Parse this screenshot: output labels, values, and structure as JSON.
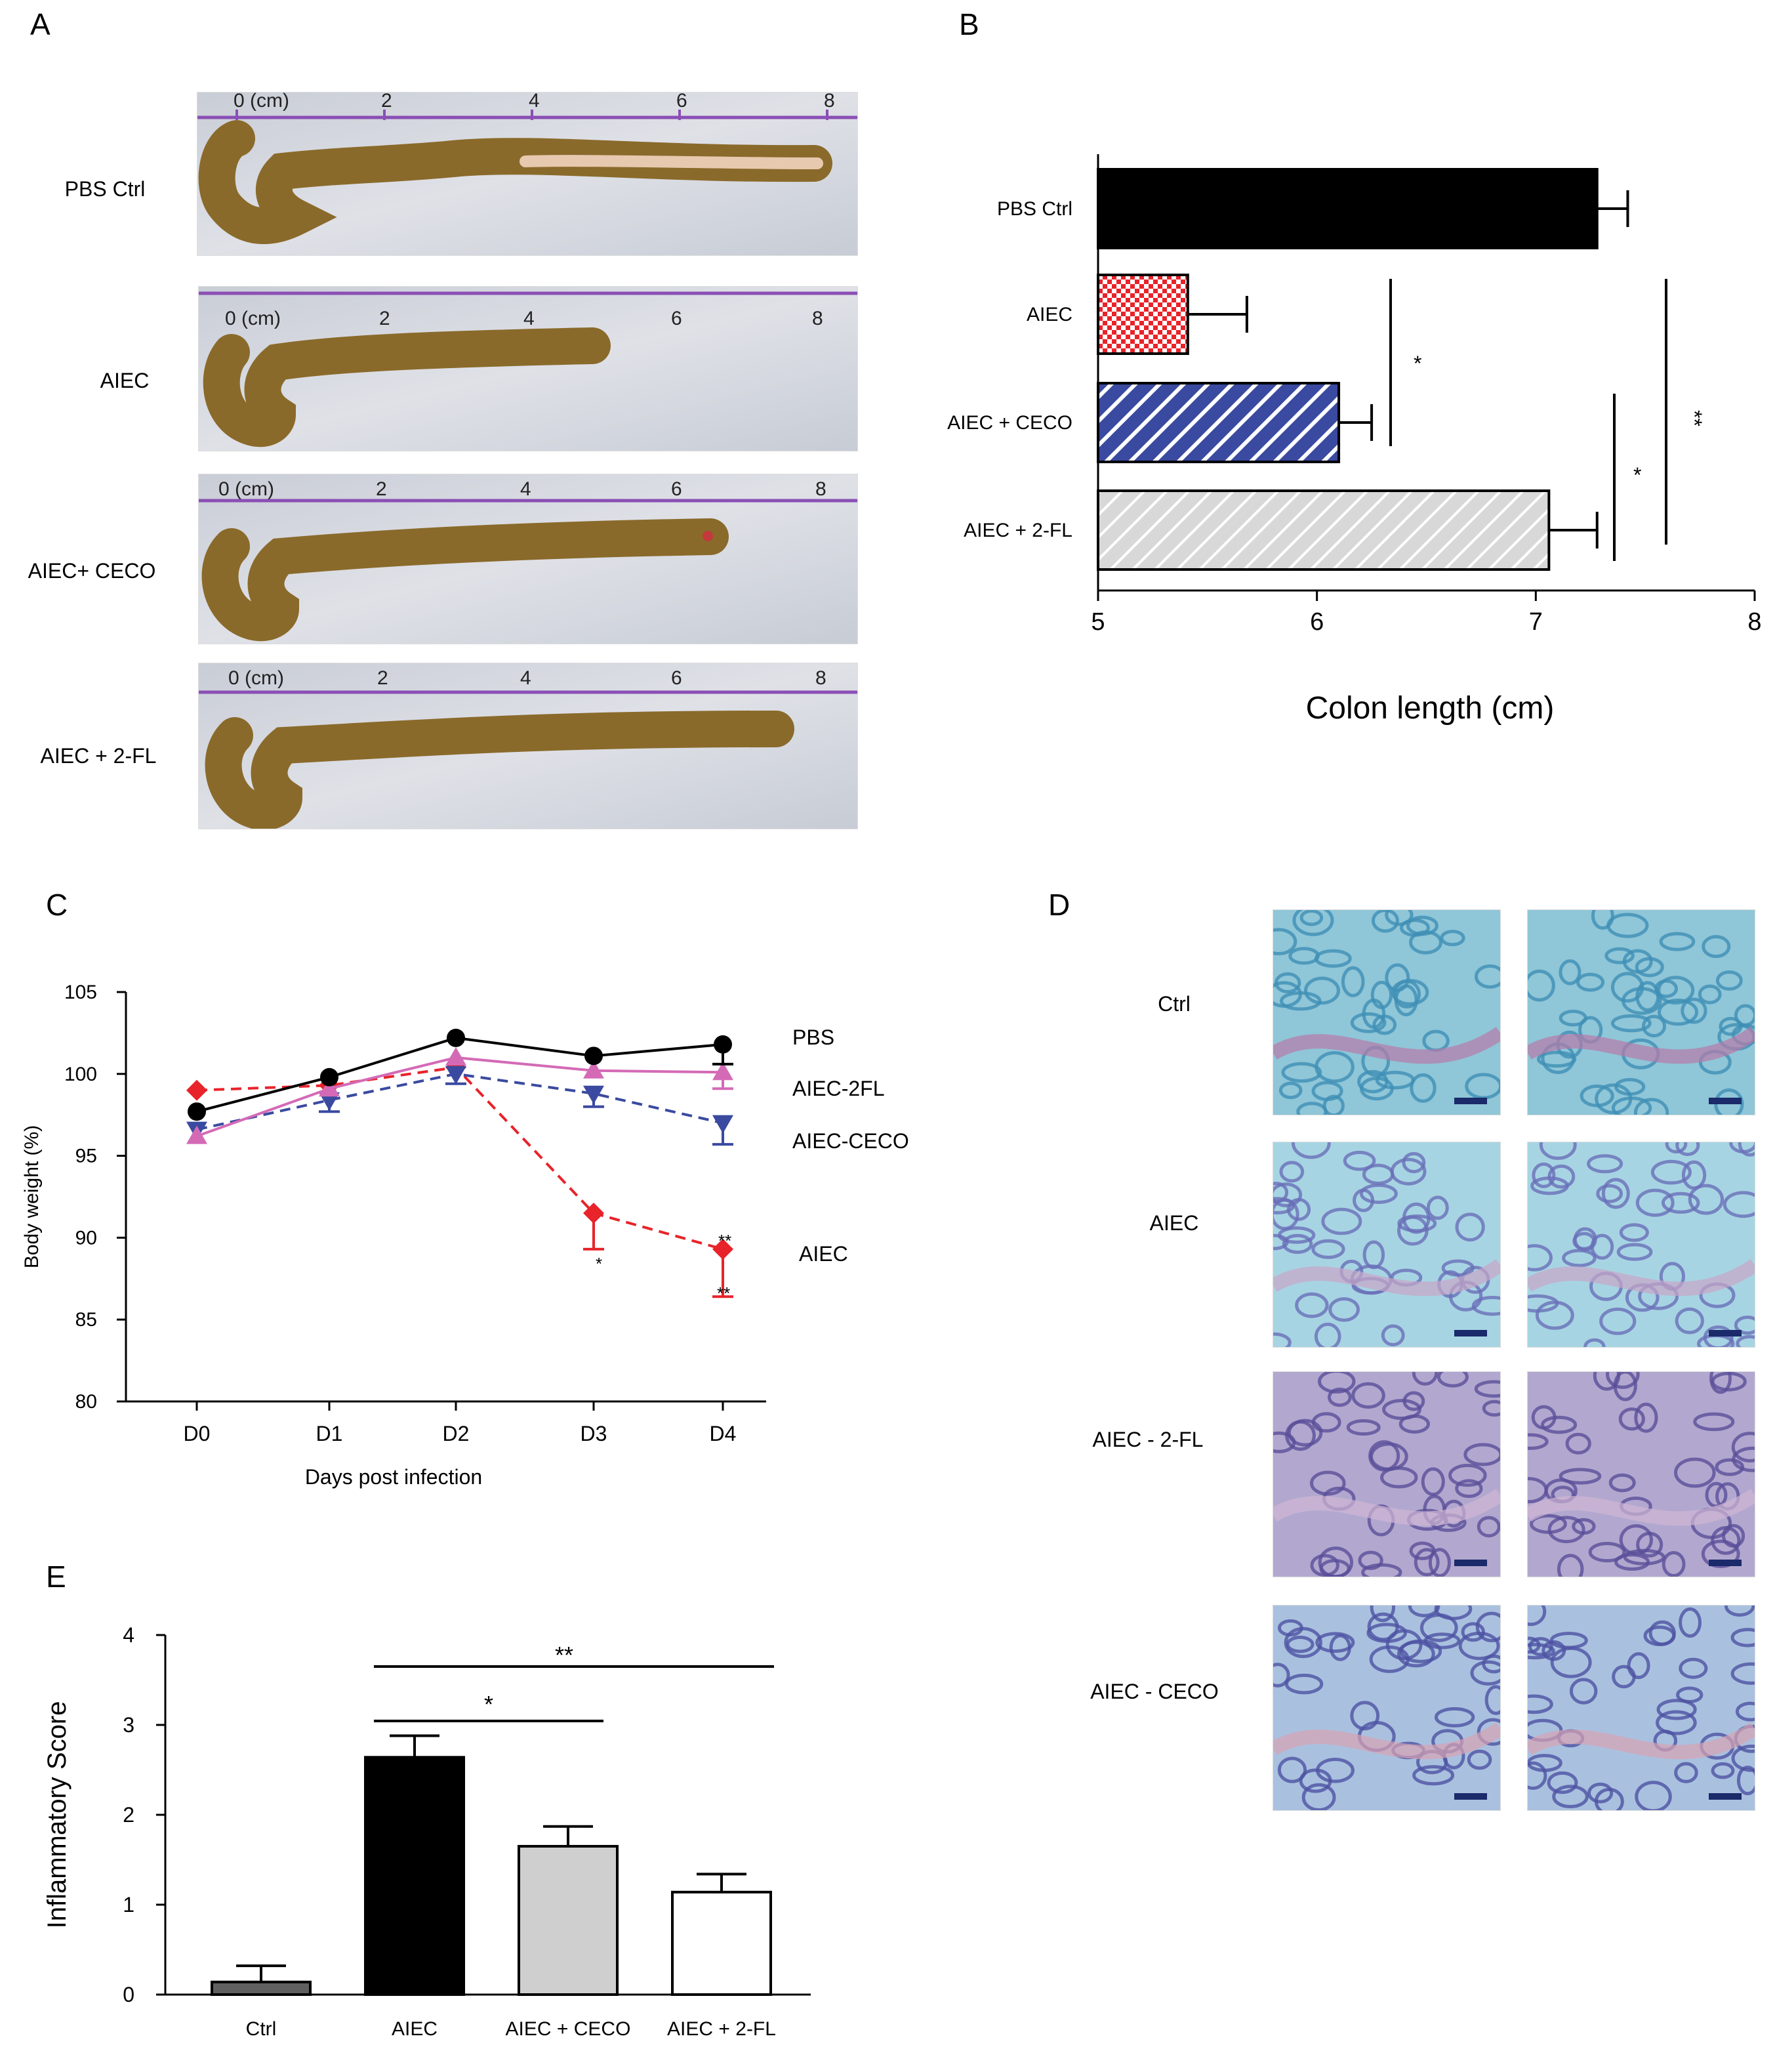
{
  "panels": {
    "A": "A",
    "B": "B",
    "C": "C",
    "D": "D",
    "E": "E"
  },
  "panel_a": {
    "rows": [
      {
        "label": "PBS Ctrl"
      },
      {
        "label": "AIEC"
      },
      {
        "label": "AIEC+ CECO"
      },
      {
        "label": "AIEC + 2-FL"
      }
    ],
    "ruler_labels": [
      "0 (cm)",
      "2",
      "4",
      "6",
      "8"
    ]
  },
  "panel_d": {
    "rows": [
      {
        "label": "Ctrl"
      },
      {
        "label": "AIEC"
      },
      {
        "label": "AIEC - 2-FL"
      },
      {
        "label": "AIEC - CECO"
      }
    ]
  },
  "chart_data": [
    {
      "id": "B",
      "type": "bar",
      "orientation": "horizontal",
      "categories": [
        "PBS Ctrl",
        "AIEC",
        "AIEC + CECO",
        "AIEC + 2-FL"
      ],
      "values": [
        7.28,
        5.41,
        6.1,
        7.06
      ],
      "errors": [
        0.14,
        0.27,
        0.15,
        0.22
      ],
      "xlabel": "Colon length (cm)",
      "xlim": [
        5,
        8
      ],
      "xticks": [
        "5",
        "6",
        "7",
        "8"
      ],
      "significance": [
        "*",
        "*",
        "**"
      ],
      "colors": {
        "pbs": "#000000",
        "aiec": "#e8232a",
        "ceco": "#3a4aa0",
        "fl": "#d8d8d8"
      }
    },
    {
      "id": "C",
      "type": "line",
      "xlabel": "Days post infection",
      "ylabel": "Body weight (%)",
      "categories": [
        "D0",
        "D1",
        "D2",
        "D3",
        "D4"
      ],
      "ylim": [
        80,
        105
      ],
      "yticks": [
        "80",
        "85",
        "90",
        "95",
        "100",
        "105"
      ],
      "series": [
        {
          "name": "PBS",
          "values": [
            97.7,
            99.8,
            102.2,
            101.1,
            101.8
          ],
          "errors": [
            0,
            0,
            0,
            0,
            1.2
          ],
          "color": "#000000"
        },
        {
          "name": "AIEC-2FL",
          "values": [
            96.2,
            99.1,
            101.0,
            100.2,
            100.1
          ],
          "errors": [
            0,
            0,
            0,
            0,
            1.0
          ],
          "color": "#d46ab6"
        },
        {
          "name": "AIEC-CECO",
          "values": [
            96.6,
            98.4,
            100.0,
            98.8,
            97.0
          ],
          "errors": [
            0,
            0.7,
            0.6,
            0.8,
            1.3
          ],
          "color": "#3a4aa0"
        },
        {
          "name": "AIEC",
          "values": [
            99.0,
            99.3,
            100.4,
            91.5,
            89.3
          ],
          "errors": [
            0,
            0,
            0,
            2.2,
            2.9
          ],
          "color": "#e8232a"
        }
      ],
      "annotations": [
        "*",
        "**",
        "**"
      ]
    },
    {
      "id": "E",
      "type": "bar",
      "ylabel": "Inflammatory Score",
      "categories": [
        "Ctrl",
        "AIEC",
        "AIEC + CECO",
        "AIEC + 2-FL"
      ],
      "values": [
        0.14,
        2.64,
        1.65,
        1.14
      ],
      "errors": [
        0.18,
        0.24,
        0.22,
        0.2
      ],
      "ylim": [
        0,
        4
      ],
      "yticks": [
        "0",
        "1",
        "2",
        "3",
        "4"
      ],
      "significance": [
        "*",
        "**"
      ],
      "colors": [
        "#606060",
        "#000000",
        "#cfcfcf",
        "#ffffff"
      ]
    }
  ]
}
